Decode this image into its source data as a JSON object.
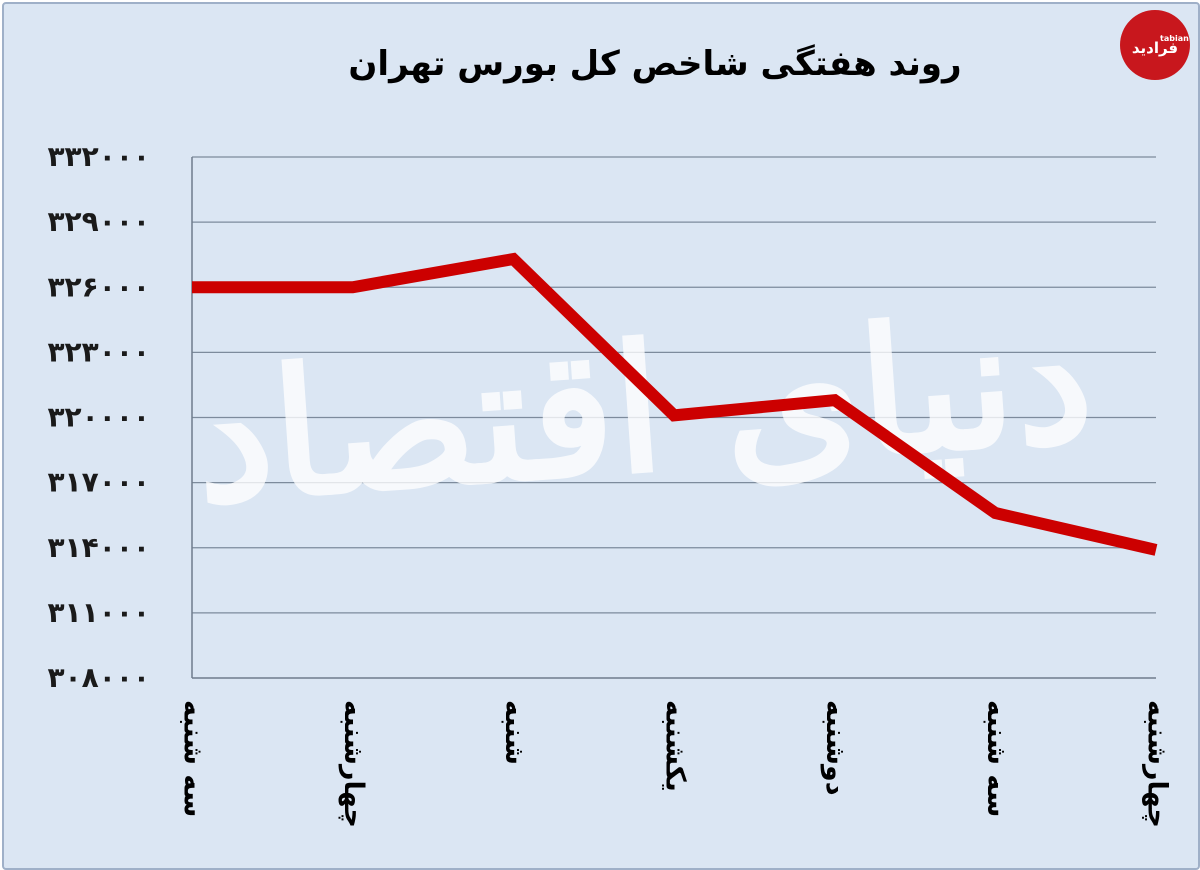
{
  "chart_data": {
    "type": "line",
    "title": "روند هفتگی شاخص کل بورس تهران",
    "categories": [
      "سه شنبه",
      "چهارشنبه",
      "شنبه",
      "یکشنبه",
      "دوشنبه",
      "سه شنبه",
      "چهارشنبه"
    ],
    "values": [
      326000,
      326000,
      327300,
      320100,
      320800,
      315600,
      313900
    ],
    "y_tick_labels": [
      "۳۰۸۰۰۰",
      "۳۱۱۰۰۰",
      "۳۱۴۰۰۰",
      "۳۱۷۰۰۰",
      "۳۲۰۰۰۰",
      "۳۲۳۰۰۰",
      "۳۲۶۰۰۰",
      "۳۲۹۰۰۰",
      "۳۳۲۰۰۰"
    ],
    "y_ticks": [
      308000,
      311000,
      314000,
      317000,
      320000,
      323000,
      326000,
      329000,
      332000
    ],
    "ylim": [
      308000,
      332000
    ],
    "grid": true,
    "xlabel": "",
    "ylabel": ""
  },
  "colors": {
    "line": "#cc0000",
    "background": "#dbe6f3",
    "grid": "#7d8b9c"
  },
  "watermark": {
    "text": "دنیای اقتصاد"
  },
  "logo": {
    "small": "tabian",
    "main": "فرادید"
  }
}
